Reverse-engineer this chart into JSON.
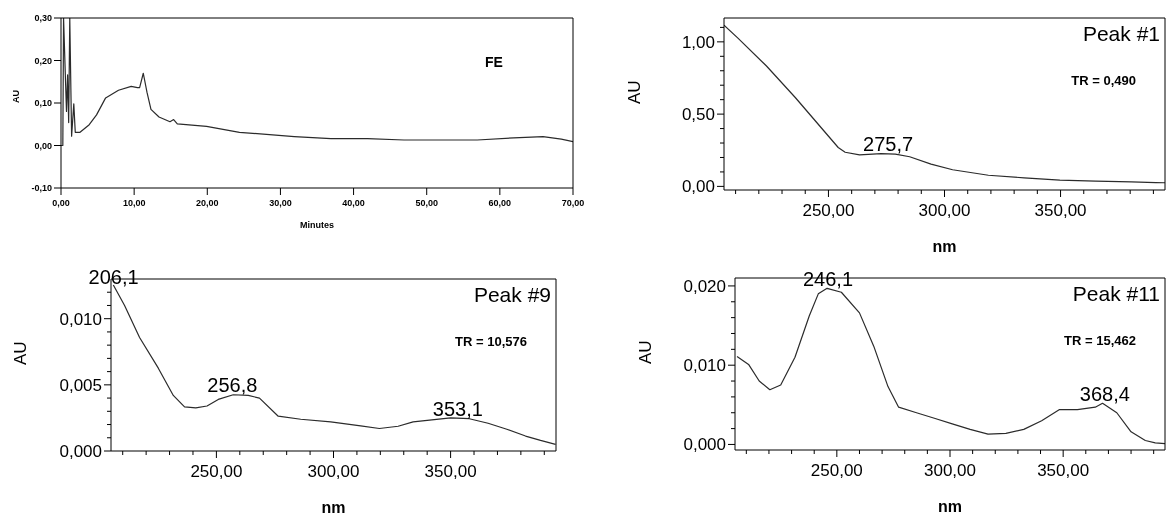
{
  "chart_data": [
    {
      "type": "line",
      "color": "#2b2b2b",
      "xlabel": "Minutes",
      "ylabel": "AU",
      "annotations": [
        "FE"
      ],
      "x": [
        0,
        0.25,
        0.35,
        0.6,
        0.75,
        0.9,
        1.05,
        1.2,
        1.45,
        1.75,
        1.95,
        2.6,
        3.86,
        4.86,
        6.1,
        7.86,
        9.6,
        10.45,
        10.75,
        11.25,
        11.76,
        12.3,
        13.4,
        14.9,
        15.4,
        15.9,
        19.9,
        24.4,
        31.9,
        36.9,
        41.9,
        46.9,
        51.9,
        56.9,
        61.9,
        65.9,
        68.4,
        70
      ],
      "values": [
        0,
        0,
        0.3,
        0.161,
        0.08,
        0.166,
        0.054,
        0.3,
        0.022,
        0.098,
        0.031,
        0.031,
        0.049,
        0.072,
        0.112,
        0.13,
        0.139,
        0.136,
        0.136,
        0.17,
        0.125,
        0.085,
        0.067,
        0.056,
        0.061,
        0.051,
        0.045,
        0.031,
        0.021,
        0.016,
        0.016,
        0.013,
        0.013,
        0.013,
        0.018,
        0.021,
        0.015,
        0.009
      ],
      "xlim": [
        0,
        70
      ],
      "ylim": [
        -0.1,
        0.3
      ],
      "xticks": [
        {
          "value": 0,
          "label": "0,00"
        },
        {
          "value": 10,
          "label": "10,00"
        },
        {
          "value": 20,
          "label": "20,00"
        },
        {
          "value": 30,
          "label": "30,00"
        },
        {
          "value": 40,
          "label": "40,00"
        },
        {
          "value": 50,
          "label": "50,00"
        },
        {
          "value": 60,
          "label": "60,00"
        },
        {
          "value": 70,
          "label": "70,00"
        }
      ],
      "yticks": [
        {
          "value": -0.1,
          "label": "-0,10"
        },
        {
          "value": 0,
          "label": "0,00"
        },
        {
          "value": 0.1,
          "label": "0,10"
        },
        {
          "value": 0.2,
          "label": "0,20"
        },
        {
          "value": 0.3,
          "label": "0,30"
        }
      ]
    },
    {
      "type": "line",
      "color": "#2b2b2b",
      "xlabel": "nm",
      "ylabel": "AU",
      "annotations": [
        "Peak #1",
        "TR = 0,490",
        {
          "text": "275,7",
          "x": 275.7,
          "y": 0.23
        }
      ],
      "x": [
        205,
        211,
        223.3,
        235.7,
        248,
        254.2,
        257.2,
        263.4,
        272.7,
        278.8,
        285,
        294.2,
        303.5,
        318.9,
        334.3,
        349.7,
        365.1,
        380.5,
        391,
        395
      ],
      "values": [
        1.115,
        1.026,
        0.833,
        0.615,
        0.385,
        0.269,
        0.236,
        0.218,
        0.226,
        0.223,
        0.205,
        0.154,
        0.115,
        0.077,
        0.059,
        0.044,
        0.036,
        0.031,
        0.026,
        0.025
      ],
      "xlim": [
        205,
        395
      ],
      "ylim": [
        -0.025,
        1.165
      ],
      "xticks": [
        {
          "value": 210,
          "label": null
        },
        {
          "value": 220,
          "label": null
        },
        {
          "value": 230,
          "label": null
        },
        {
          "value": 240,
          "label": null
        },
        {
          "value": 250,
          "label": "250,00"
        },
        {
          "value": 260,
          "label": null
        },
        {
          "value": 270,
          "label": null
        },
        {
          "value": 280,
          "label": null
        },
        {
          "value": 290,
          "label": null
        },
        {
          "value": 300,
          "label": "300,00"
        },
        {
          "value": 310,
          "label": null
        },
        {
          "value": 320,
          "label": null
        },
        {
          "value": 330,
          "label": null
        },
        {
          "value": 340,
          "label": null
        },
        {
          "value": 350,
          "label": "350,00"
        },
        {
          "value": 360,
          "label": null
        },
        {
          "value": 370,
          "label": null
        },
        {
          "value": 380,
          "label": null
        },
        {
          "value": 390,
          "label": null
        }
      ],
      "yticks": [
        {
          "value": 0,
          "label": "0,00"
        },
        {
          "value": 0.1,
          "label": null
        },
        {
          "value": 0.2,
          "label": null
        },
        {
          "value": 0.3,
          "label": null
        },
        {
          "value": 0.4,
          "label": null
        },
        {
          "value": 0.5,
          "label": "0,50"
        },
        {
          "value": 0.6,
          "label": null
        },
        {
          "value": 0.7,
          "label": null
        },
        {
          "value": 0.8,
          "label": null
        },
        {
          "value": 0.9,
          "label": null
        },
        {
          "value": 1,
          "label": "1,00"
        },
        {
          "value": 1.1,
          "label": null
        }
      ]
    },
    {
      "type": "line",
      "color": "#2b2b2b",
      "xlabel": "nm",
      "ylabel": "AU",
      "annotations": [
        "Peak #9",
        "TR = 10,576",
        {
          "text": "206,1",
          "x": 206.1,
          "y": 0.0125
        },
        {
          "text": "256,8",
          "x": 256.8,
          "y": 0.0043
        },
        {
          "text": "353,1",
          "x": 353.1,
          "y": 0.0025
        }
      ],
      "x": [
        206,
        210.8,
        217.2,
        225.2,
        231.6,
        236.4,
        241.2,
        246,
        250.8,
        257.2,
        263.6,
        268.4,
        276.4,
        286,
        298.8,
        311.6,
        319.6,
        327.6,
        334,
        342,
        350,
        358,
        366,
        374,
        382,
        388.4,
        394.8
      ],
      "values": [
        0.01255,
        0.011,
        0.00858,
        0.00626,
        0.0042,
        0.00334,
        0.00326,
        0.0034,
        0.0039,
        0.00425,
        0.0042,
        0.004,
        0.00263,
        0.0024,
        0.0022,
        0.0019,
        0.0017,
        0.00187,
        0.0022,
        0.00235,
        0.0025,
        0.00244,
        0.0021,
        0.00164,
        0.00113,
        0.0008,
        0.0005
      ],
      "xlim": [
        205,
        395
      ],
      "ylim": [
        0,
        0.013
      ],
      "xticks": [
        {
          "value": 210,
          "label": null
        },
        {
          "value": 220,
          "label": null
        },
        {
          "value": 230,
          "label": null
        },
        {
          "value": 240,
          "label": null
        },
        {
          "value": 250,
          "label": "250,00"
        },
        {
          "value": 260,
          "label": null
        },
        {
          "value": 270,
          "label": null
        },
        {
          "value": 280,
          "label": null
        },
        {
          "value": 290,
          "label": null
        },
        {
          "value": 300,
          "label": "300,00"
        },
        {
          "value": 310,
          "label": null
        },
        {
          "value": 320,
          "label": null
        },
        {
          "value": 330,
          "label": null
        },
        {
          "value": 340,
          "label": null
        },
        {
          "value": 350,
          "label": "350,00"
        },
        {
          "value": 360,
          "label": null
        },
        {
          "value": 370,
          "label": null
        },
        {
          "value": 380,
          "label": null
        },
        {
          "value": 390,
          "label": null
        }
      ],
      "yticks": [
        {
          "value": 0,
          "label": "0,000"
        },
        {
          "value": 0.001,
          "label": null
        },
        {
          "value": 0.002,
          "label": null
        },
        {
          "value": 0.003,
          "label": null
        },
        {
          "value": 0.004,
          "label": null
        },
        {
          "value": 0.005,
          "label": "0,005"
        },
        {
          "value": 0.006,
          "label": null
        },
        {
          "value": 0.007,
          "label": null
        },
        {
          "value": 0.008,
          "label": null
        },
        {
          "value": 0.009,
          "label": null
        },
        {
          "value": 0.01,
          "label": "0,010"
        },
        {
          "value": 0.011,
          "label": null
        },
        {
          "value": 0.012,
          "label": null
        }
      ]
    },
    {
      "type": "line",
      "color": "#2b2b2b",
      "xlabel": "nm",
      "ylabel": "AU",
      "annotations": [
        "Peak #11",
        "TR = 15,462",
        {
          "text": "246,1",
          "x": 246.1,
          "y": 0.0197
        },
        {
          "text": "368,4",
          "x": 368.4,
          "y": 0.0052
        }
      ],
      "x": [
        205.9,
        211,
        215.7,
        220.4,
        225.2,
        231.5,
        237.8,
        241.8,
        245.7,
        252,
        260,
        266.3,
        272.6,
        277.3,
        285.2,
        293.1,
        301,
        308.9,
        316.8,
        324.7,
        332.6,
        340.5,
        348.4,
        356.3,
        364.2,
        367.4,
        373.7,
        380,
        386.3,
        390.7,
        395
      ],
      "values": [
        0.0111,
        0.0101,
        0.008,
        0.0069,
        0.0075,
        0.011,
        0.0162,
        0.019,
        0.0197,
        0.0192,
        0.0166,
        0.0124,
        0.0073,
        0.0047,
        0.004,
        0.0033,
        0.0026,
        0.0019,
        0.0013,
        0.0014,
        0.0019,
        0.003,
        0.0044,
        0.0044,
        0.0047,
        0.0052,
        0.004,
        0.0016,
        0.0005,
        0.0002,
        0.0001
      ],
      "xlim": [
        205,
        395
      ],
      "ylim": [
        -0.0007,
        0.021
      ],
      "xticks": [
        {
          "value": 210,
          "label": null
        },
        {
          "value": 220,
          "label": null
        },
        {
          "value": 230,
          "label": null
        },
        {
          "value": 240,
          "label": null
        },
        {
          "value": 250,
          "label": "250,00"
        },
        {
          "value": 260,
          "label": null
        },
        {
          "value": 270,
          "label": null
        },
        {
          "value": 280,
          "label": null
        },
        {
          "value": 290,
          "label": null
        },
        {
          "value": 300,
          "label": "300,00"
        },
        {
          "value": 310,
          "label": null
        },
        {
          "value": 320,
          "label": null
        },
        {
          "value": 330,
          "label": null
        },
        {
          "value": 340,
          "label": null
        },
        {
          "value": 350,
          "label": "350,00"
        },
        {
          "value": 360,
          "label": null
        },
        {
          "value": 370,
          "label": null
        },
        {
          "value": 380,
          "label": null
        },
        {
          "value": 390,
          "label": null
        }
      ],
      "yticks": [
        {
          "value": 0,
          "label": "0,000"
        },
        {
          "value": 0.002,
          "label": null
        },
        {
          "value": 0.004,
          "label": null
        },
        {
          "value": 0.006,
          "label": null
        },
        {
          "value": 0.008,
          "label": null
        },
        {
          "value": 0.01,
          "label": "0,010"
        },
        {
          "value": 0.012,
          "label": null
        },
        {
          "value": 0.014,
          "label": null
        },
        {
          "value": 0.016,
          "label": null
        },
        {
          "value": 0.018,
          "label": null
        },
        {
          "value": 0.02,
          "label": "0,020"
        }
      ]
    }
  ]
}
